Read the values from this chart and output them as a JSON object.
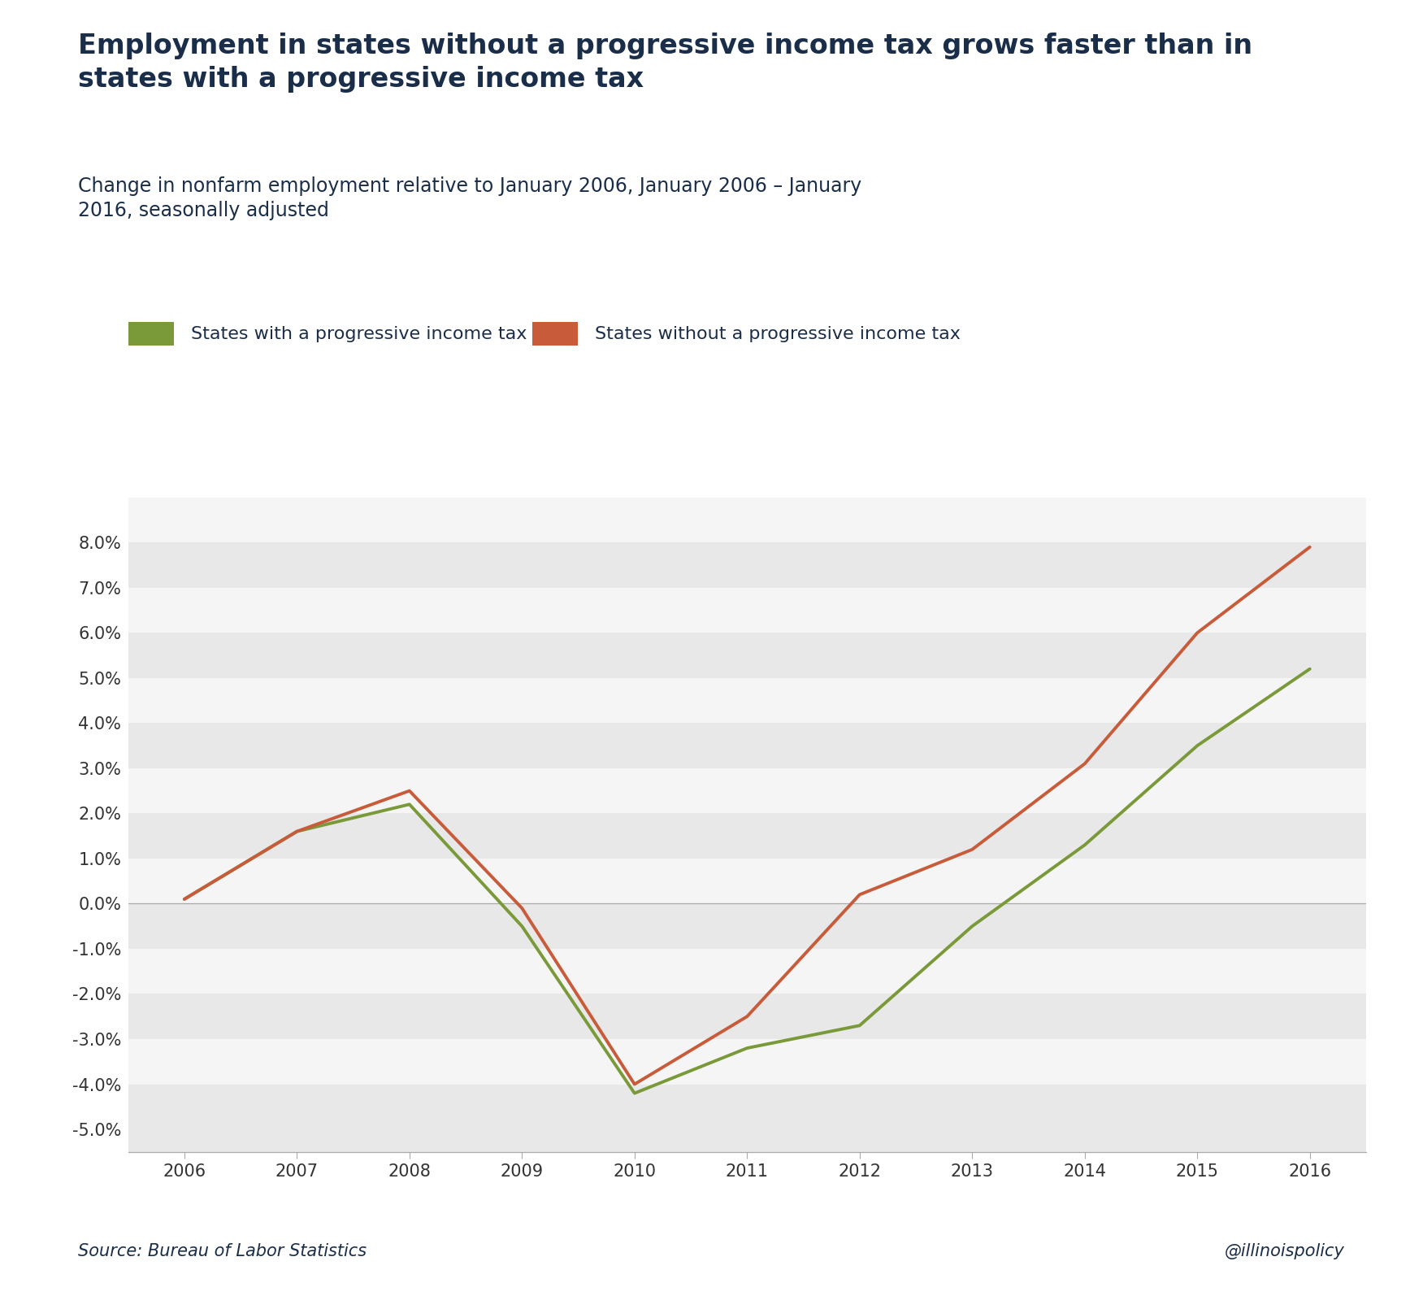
{
  "title": "Employment in states without a progressive income tax grows faster than in\nstates with a progressive income tax",
  "subtitle": "Change in nonfarm employment relative to January 2006, January 2006 – January\n2016, seasonally adjusted",
  "title_color": "#1a2e4a",
  "subtitle_color": "#1a2e4a",
  "source_text": "Source: Bureau of Labor Statistics",
  "watermark": "@illinoispolicy",
  "years": [
    2006,
    2007,
    2008,
    2009,
    2010,
    2011,
    2012,
    2013,
    2014,
    2015,
    2016
  ],
  "progressive": [
    0.001,
    0.016,
    0.022,
    -0.005,
    -0.042,
    -0.032,
    -0.027,
    -0.005,
    0.013,
    0.035,
    0.052
  ],
  "no_progressive": [
    0.001,
    0.016,
    0.025,
    -0.001,
    -0.04,
    -0.025,
    0.002,
    0.012,
    0.031,
    0.06,
    0.079
  ],
  "progressive_color": "#7a9a3a",
  "no_progressive_color": "#c75b3a",
  "line_width": 2.8,
  "ylim": [
    -0.055,
    0.09
  ],
  "yticks": [
    -0.05,
    -0.04,
    -0.03,
    -0.02,
    -0.01,
    0.0,
    0.01,
    0.02,
    0.03,
    0.04,
    0.05,
    0.06,
    0.07,
    0.08
  ],
  "background_color": "#ffffff",
  "band_color_light": "#e8e8e8",
  "band_color_white": "#f5f5f5",
  "title_fontsize": 24,
  "subtitle_fontsize": 17,
  "tick_fontsize": 15,
  "legend_fontsize": 16,
  "source_fontsize": 15
}
